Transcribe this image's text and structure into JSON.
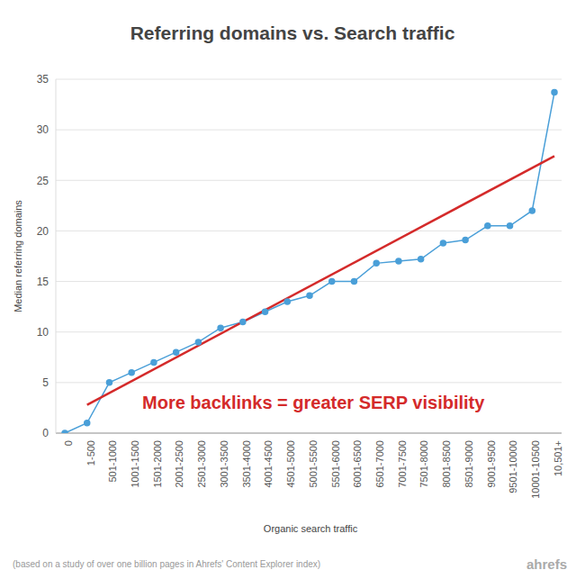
{
  "chart_data": {
    "type": "line",
    "title": "Referring domains vs. Search traffic",
    "x_label": "Organic search traffic",
    "y_label": "Median referring domains",
    "categories": [
      "0",
      "1-500",
      "501-1000",
      "1001-1500",
      "1501-2000",
      "2001-2500",
      "2501-3000",
      "3001-3500",
      "3501-4000",
      "4001-4500",
      "4501-5000",
      "5001-5500",
      "5501-6000",
      "6001-6500",
      "6501-7000",
      "7001-7500",
      "7501-8000",
      "8001-8500",
      "8501-9000",
      "9001-9500",
      "9501-10000",
      "10001-10500",
      "10,501+"
    ],
    "series": [
      {
        "color": "#4a9fd8",
        "marker": "circle",
        "line_style": "solid",
        "values": [
          0,
          1,
          5,
          6,
          7,
          8,
          9,
          10.4,
          11,
          12,
          13,
          13.6,
          15,
          15,
          16.8,
          17,
          17.2,
          18.8,
          19.1,
          20.5,
          20.5,
          22,
          33.7
        ]
      },
      {
        "color": "#d42a2a",
        "marker": "none",
        "line_style": "solid",
        "values": [
          null,
          2.8,
          null,
          null,
          null,
          null,
          null,
          null,
          null,
          null,
          null,
          null,
          null,
          null,
          null,
          null,
          null,
          null,
          null,
          null,
          null,
          null,
          27.4
        ]
      }
    ],
    "annotation": "More backlinks = greater SERP visibility",
    "source": "(based on a study of over one billion pages in Ahrefs' Content Explorer index)",
    "watermark": "ahrefs",
    "ylim": [
      0,
      35
    ],
    "yticks": [
      0,
      5,
      10,
      15,
      20,
      25,
      30,
      35
    ],
    "grid": true
  }
}
